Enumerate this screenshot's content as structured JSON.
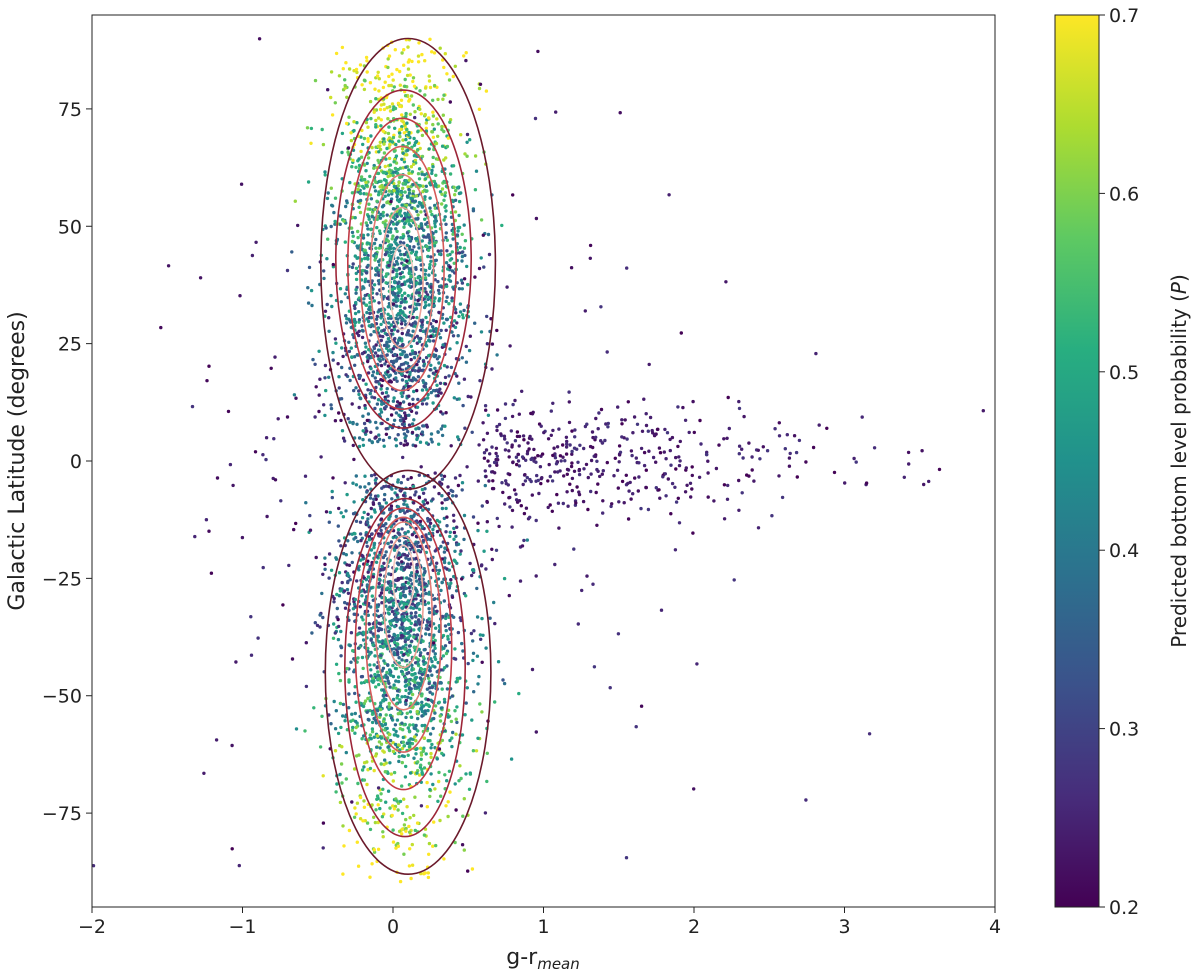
{
  "chart_data": {
    "type": "scatter",
    "title": "",
    "xlabel": {
      "main": "g-r",
      "subscript": "mean"
    },
    "ylabel": "Galactic Latitude (degrees)",
    "xlim": [
      -2,
      4
    ],
    "ylim": [
      -95,
      95
    ],
    "xticks": [
      -2,
      -1,
      0,
      1,
      2,
      3,
      4
    ],
    "yticks": [
      75,
      50,
      25,
      0,
      -25,
      -50,
      -75
    ],
    "xtick_labels": [
      "−2",
      "−1",
      "0",
      "1",
      "2",
      "3",
      "4"
    ],
    "ytick_labels": [
      "75",
      "50",
      "25",
      "0",
      "−25",
      "−50",
      "−75"
    ],
    "grid": false,
    "colorbar": {
      "label": {
        "main": "Predicted bottom level probability (",
        "symbol": "P",
        "close": ")"
      },
      "colormap": "viridis",
      "range": [
        0.2,
        0.7
      ],
      "ticks": [
        0.7,
        0.6,
        0.5,
        0.4,
        0.3,
        0.2
      ],
      "tick_labels": [
        "0.7",
        "0.6",
        "0.5",
        "0.4",
        "0.3",
        "0.2"
      ],
      "colors": [
        "#440154",
        "#472d7b",
        "#3b528b",
        "#2c728e",
        "#21918c",
        "#28ae80",
        "#5ec962",
        "#addc30",
        "#fde725"
      ]
    },
    "point_clouds": [
      {
        "name": "northern_lobe",
        "center": [
          0.05,
          40
        ],
        "sd": [
          0.22,
          26
        ],
        "lat_range": [
          3,
          90
        ],
        "count": 2600
      },
      {
        "name": "southern_lobe",
        "center": [
          0.06,
          -35
        ],
        "sd": [
          0.22,
          24
        ],
        "lat_range": [
          -90,
          -3
        ],
        "count": 2300
      },
      {
        "name": "plane_tail",
        "center": [
          1.6,
          0
        ],
        "sd": [
          0.9,
          6
        ],
        "lat_range": [
          -15,
          15
        ],
        "count": 420
      },
      {
        "name": "sparse_halo",
        "center": [
          0.3,
          0
        ],
        "sd": [
          0.9,
          45
        ],
        "lat_range": [
          -92,
          92
        ],
        "count": 260
      }
    ],
    "density_contours": {
      "colors": [
        "#6b1a2b",
        "#9d2538",
        "#c03a45",
        "#d55a5a",
        "#e17b74",
        "#eba196",
        "#f3c8bf"
      ],
      "levels": [
        {
          "north": {
            "cx": 0.1,
            "cy": 42,
            "rx": 0.58,
            "ry": 48
          },
          "south": {
            "cx": 0.1,
            "cy": -45,
            "rx": 0.55,
            "ry": 43
          }
        },
        {
          "north": {
            "cx": 0.07,
            "cy": 43,
            "rx": 0.45,
            "ry": 36
          },
          "south": {
            "cx": 0.08,
            "cy": -44,
            "rx": 0.4,
            "ry": 36
          }
        },
        {
          "north": {
            "cx": 0.06,
            "cy": 42,
            "rx": 0.36,
            "ry": 31
          },
          "south": {
            "cx": 0.07,
            "cy": -40,
            "rx": 0.32,
            "ry": 30
          }
        },
        {
          "north": {
            "cx": 0.06,
            "cy": 41,
            "rx": 0.28,
            "ry": 26
          },
          "south": {
            "cx": 0.07,
            "cy": -37,
            "rx": 0.25,
            "ry": 25
          }
        },
        {
          "north": {
            "cx": 0.06,
            "cy": 40,
            "rx": 0.21,
            "ry": 21
          },
          "south": {
            "cx": 0.07,
            "cy": -33,
            "rx": 0.19,
            "ry": 20
          }
        },
        {
          "north": {
            "cx": 0.06,
            "cy": 39,
            "rx": 0.14,
            "ry": 15
          },
          "south": {
            "cx": 0.07,
            "cy": -30,
            "rx": 0.13,
            "ry": 14
          }
        },
        {
          "north": {
            "cx": 0.06,
            "cy": 37,
            "rx": 0.08,
            "ry": 9
          },
          "south": {
            "cx": 0.07,
            "cy": -25,
            "rx": 0.07,
            "ry": 7
          }
        }
      ]
    }
  }
}
